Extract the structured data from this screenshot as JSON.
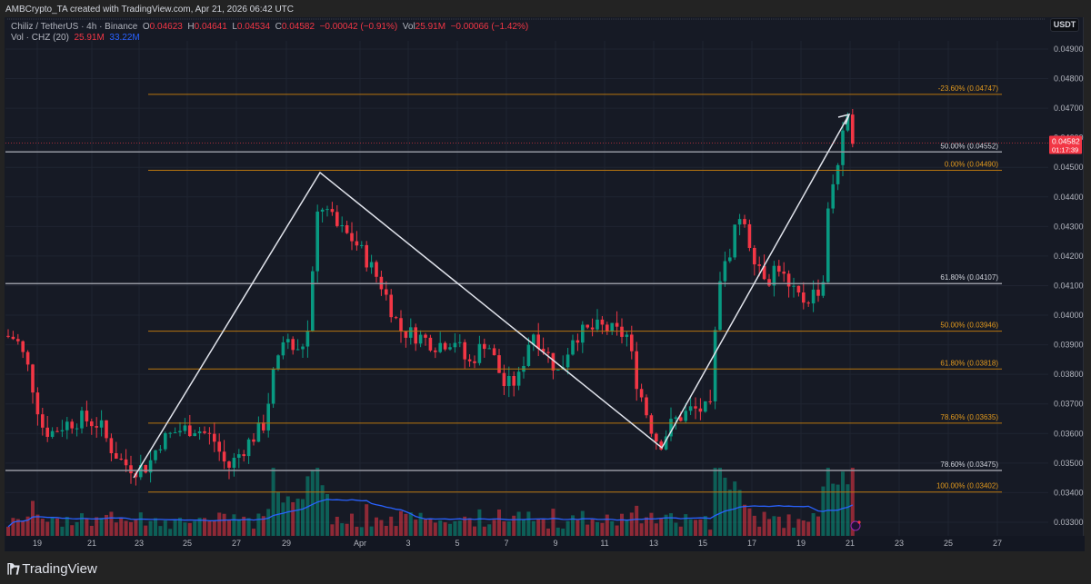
{
  "header": {
    "credit": "AMBCrypto_TA created with TradingView.com, Apr 21, 2026 06:42 UTC"
  },
  "legend": {
    "symbol": "Chiliz / TetherUS · 4h · Binance",
    "open_label": "O",
    "open": "0.04623",
    "high_label": "H",
    "high": "0.04641",
    "low_label": "L",
    "low": "0.04534",
    "close_label": "C",
    "close": "0.04582",
    "change": "−0.00042 (−0.91%)",
    "vol_label": "Vol",
    "vol": "25.91M",
    "vol_change": "−0.00066 (−1.42%)",
    "volume_indicator": "Vol · CHZ (20)",
    "volume_value": "25.91M",
    "volume_ma": "33.22M"
  },
  "price_axis": {
    "currency": "USDT",
    "ticks": [
      "0.04900",
      "0.04800",
      "0.04700",
      "0.04600",
      "0.04500",
      "0.04400",
      "0.04300",
      "0.04200",
      "0.04100",
      "0.04000",
      "0.03900",
      "0.03800",
      "0.03700",
      "0.03600",
      "0.03500",
      "0.03400",
      "0.03300"
    ],
    "current_price": "0.04582",
    "countdown": "01:17:39"
  },
  "time_axis": {
    "ticks": [
      "19",
      "21",
      "23",
      "25",
      "27",
      "29",
      "Apr",
      "3",
      "5",
      "7",
      "9",
      "11",
      "13",
      "15",
      "17",
      "19",
      "21",
      "23",
      "25",
      "27"
    ]
  },
  "footer": {
    "brand": "TradingView"
  },
  "colors": {
    "background": "#161a25",
    "up": "#089981",
    "down": "#f23645",
    "fib_orange": "#b8760f",
    "fib_gray": "#9598a1",
    "line": "#e0e3eb",
    "volume_ma": "#2962ff"
  },
  "chart_data": {
    "type": "candlestick",
    "title": "Chiliz / TetherUS · 4h · Binance",
    "ylabel": "USDT",
    "ylim": [
      0.0328,
      0.0495
    ],
    "fib_levels": [
      {
        "label": "-23.60% (0.04747)",
        "value": 0.04747,
        "color": "orange"
      },
      {
        "label": "50.00% (0.04552)",
        "value": 0.04552,
        "color": "gray"
      },
      {
        "label": "0.00% (0.04490)",
        "value": 0.0449,
        "color": "orange"
      },
      {
        "label": "61.80% (0.04107)",
        "value": 0.04107,
        "color": "gray"
      },
      {
        "label": "50.00% (0.03946)",
        "value": 0.03946,
        "color": "orange"
      },
      {
        "label": "61.80% (0.03818)",
        "value": 0.03818,
        "color": "orange"
      },
      {
        "label": "78.60% (0.03635)",
        "value": 0.03635,
        "color": "orange"
      },
      {
        "label": "78.60% (0.03475)",
        "value": 0.03475,
        "color": "gray"
      },
      {
        "label": "100.00% (0.03402)",
        "value": 0.03402,
        "color": "orange"
      }
    ],
    "swing_path": [
      {
        "date": "Mar 23",
        "price": 0.0344
      },
      {
        "date": "Mar 30",
        "price": 0.044
      },
      {
        "date": "Apr 13",
        "price": 0.0355
      },
      {
        "date": "Apr 21",
        "price": 0.0467
      }
    ],
    "ohlc_last": {
      "open": 0.04623,
      "high": 0.04641,
      "low": 0.04534,
      "close": 0.04582
    },
    "volume_last": "25.91M",
    "volume_ma20": "33.22M"
  }
}
